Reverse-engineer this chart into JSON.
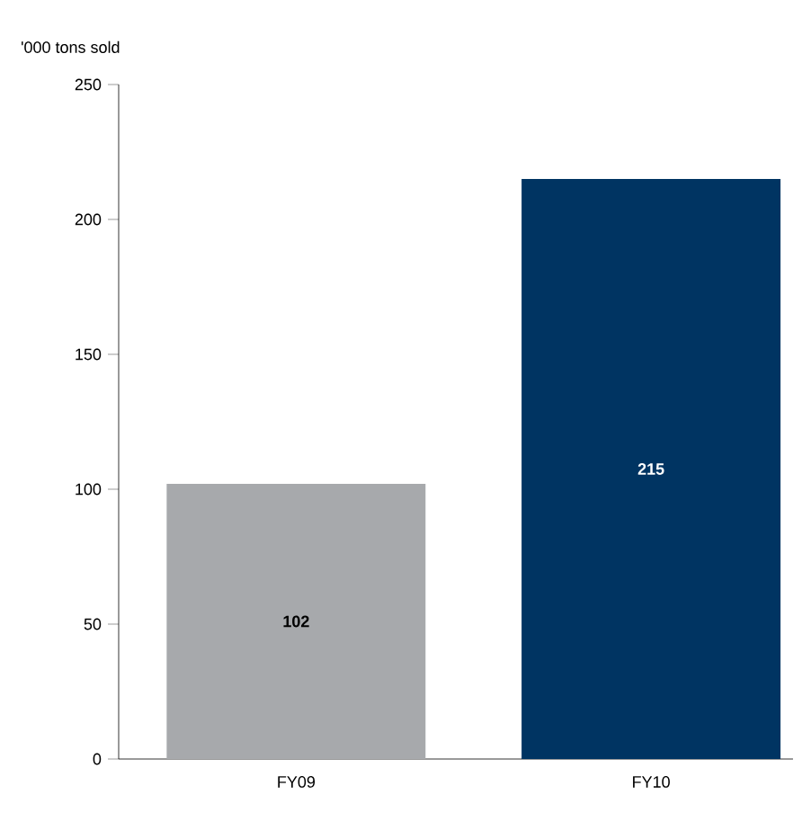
{
  "chart_data": {
    "type": "bar",
    "ylabel": "'000 tons sold",
    "categories": [
      "FY09",
      "FY10"
    ],
    "values": [
      102,
      215
    ],
    "colors": [
      "#a7a9ac",
      "#003462"
    ],
    "ylim": [
      0,
      250
    ],
    "yticks": [
      0,
      50,
      100,
      150,
      200,
      250
    ],
    "data_labels": true
  }
}
